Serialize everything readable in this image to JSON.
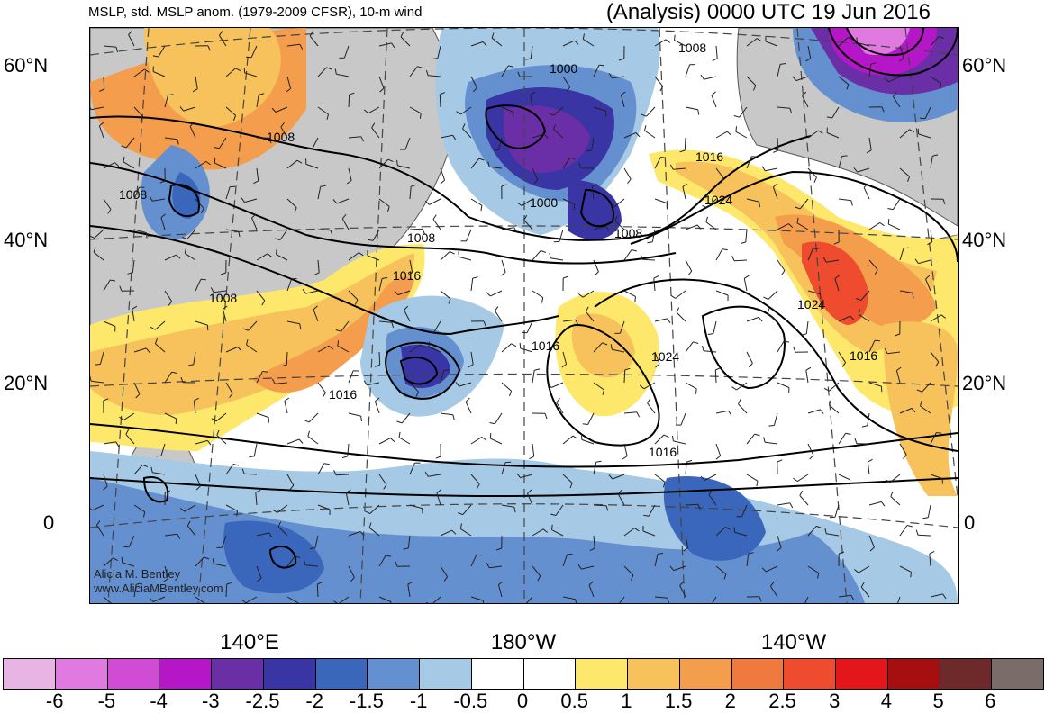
{
  "header": {
    "title_left": "MSLP, std. MSLP anom. (1979-2009 CFSR), 10-m wind",
    "title_right": "(Analysis) 0000 UTC 19 Jun 2016"
  },
  "axes": {
    "lat_labels": [
      "60°N",
      "40°N",
      "20°N",
      "0"
    ],
    "lon_labels": [
      "140°E",
      "180°W",
      "140°W"
    ]
  },
  "contours": {
    "labels": [
      "1000",
      "1008",
      "1008",
      "1008",
      "1008",
      "1000",
      "1008",
      "1016",
      "1016",
      "1024",
      "1016",
      "1024",
      "1024",
      "1016",
      "1016",
      "1016",
      "1008"
    ]
  },
  "credit": {
    "name": "Alicia M. Bentley",
    "site": "www.AliciaMBentley.com"
  },
  "colorbar": {
    "colors": [
      "#e8b4e4",
      "#e07ae0",
      "#d04cd4",
      "#b516c8",
      "#6a2ea6",
      "#3a35a5",
      "#3a66bb",
      "#6590cf",
      "#a6c9e5",
      "#ffffff",
      "#ffffff",
      "#fde86b",
      "#f7c25c",
      "#f49d4d",
      "#f07a3e",
      "#ee4b2f",
      "#e3161b",
      "#a60f10",
      "#6e2a2a",
      "#7a6c69"
    ],
    "labels": [
      "-6",
      "-5",
      "-4",
      "-3",
      "-2.5",
      "-2",
      "-1.5",
      "-1",
      "-0.5",
      "0",
      "0.5",
      "1",
      "1.5",
      "2",
      "2.5",
      "3",
      "4",
      "5",
      "6"
    ]
  }
}
